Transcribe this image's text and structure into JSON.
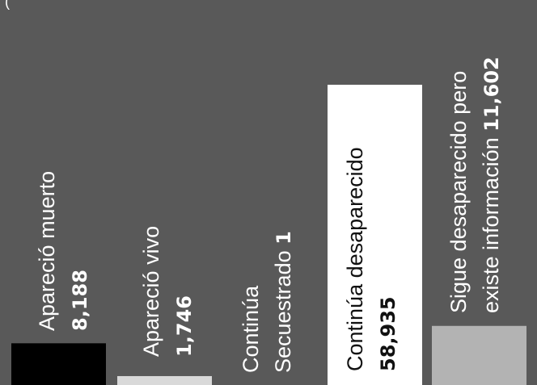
{
  "chart_data": {
    "type": "bar",
    "categories": [
      "Apareció muerto",
      "Apareció vivo",
      "Continúa Secuestrado",
      "Continúa desaparecido",
      "Sigue desaparecido pero existe información"
    ],
    "values": [
      8188,
      1746,
      1,
      58935,
      11602
    ],
    "value_labels": [
      "8,188",
      "1,746",
      "1",
      "58,935",
      "11,602"
    ],
    "label_lines": [
      [
        "Apareció muerto",
        ""
      ],
      [
        "Apareció vivo",
        ""
      ],
      [
        "Continúa",
        "Secuestrado"
      ],
      [
        "Continúa desaparecido",
        ""
      ],
      [
        "Sigue desaparecido pero",
        "existe información"
      ]
    ],
    "colors": [
      "#000000",
      "#d9d9d9",
      "#595959",
      "#ffffff",
      "#b3b3b3"
    ],
    "title": "",
    "xlabel": "",
    "ylabel": "",
    "grid": false,
    "legend": "none"
  },
  "corner_text": "("
}
